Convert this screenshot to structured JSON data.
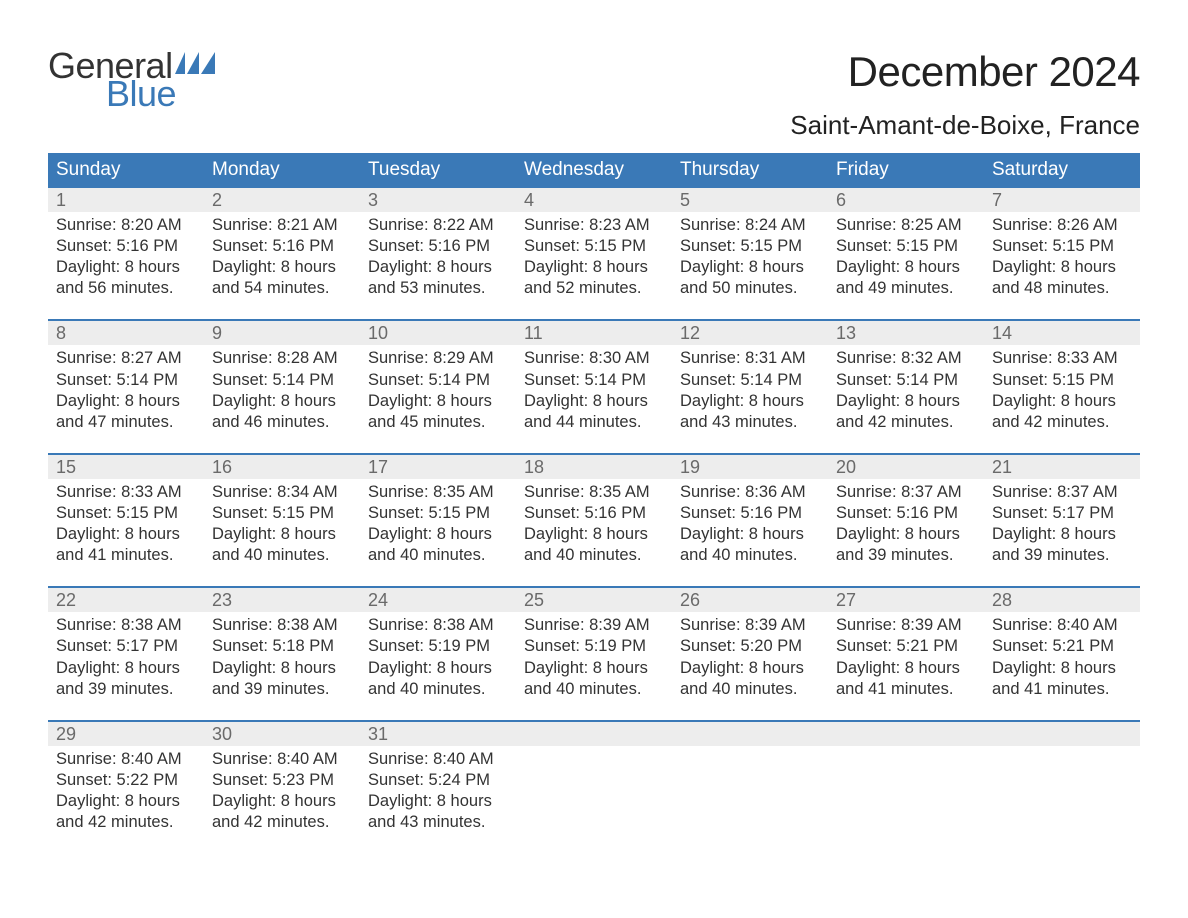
{
  "brand": {
    "word1": "General",
    "word2": "Blue",
    "accent_color": "#3a79b7"
  },
  "header": {
    "month_title": "December 2024",
    "location": "Saint-Amant-de-Boixe, France",
    "title_fontsize": 42,
    "location_fontsize": 26,
    "text_color": "#222222"
  },
  "calendar": {
    "type": "table",
    "header_bg": "#3a79b7",
    "header_text_color": "#ffffff",
    "daynum_bg": "#ededed",
    "daynum_color": "#6a6a6a",
    "week_divider_color": "#3a79b7",
    "body_text_color": "#333333",
    "body_fontsize": 16.5,
    "columns": [
      "Sunday",
      "Monday",
      "Tuesday",
      "Wednesday",
      "Thursday",
      "Friday",
      "Saturday"
    ],
    "days": [
      {
        "n": 1,
        "sunrise": "8:20 AM",
        "sunset": "5:16 PM",
        "dl": "8 hours and 56 minutes."
      },
      {
        "n": 2,
        "sunrise": "8:21 AM",
        "sunset": "5:16 PM",
        "dl": "8 hours and 54 minutes."
      },
      {
        "n": 3,
        "sunrise": "8:22 AM",
        "sunset": "5:16 PM",
        "dl": "8 hours and 53 minutes."
      },
      {
        "n": 4,
        "sunrise": "8:23 AM",
        "sunset": "5:15 PM",
        "dl": "8 hours and 52 minutes."
      },
      {
        "n": 5,
        "sunrise": "8:24 AM",
        "sunset": "5:15 PM",
        "dl": "8 hours and 50 minutes."
      },
      {
        "n": 6,
        "sunrise": "8:25 AM",
        "sunset": "5:15 PM",
        "dl": "8 hours and 49 minutes."
      },
      {
        "n": 7,
        "sunrise": "8:26 AM",
        "sunset": "5:15 PM",
        "dl": "8 hours and 48 minutes."
      },
      {
        "n": 8,
        "sunrise": "8:27 AM",
        "sunset": "5:14 PM",
        "dl": "8 hours and 47 minutes."
      },
      {
        "n": 9,
        "sunrise": "8:28 AM",
        "sunset": "5:14 PM",
        "dl": "8 hours and 46 minutes."
      },
      {
        "n": 10,
        "sunrise": "8:29 AM",
        "sunset": "5:14 PM",
        "dl": "8 hours and 45 minutes."
      },
      {
        "n": 11,
        "sunrise": "8:30 AM",
        "sunset": "5:14 PM",
        "dl": "8 hours and 44 minutes."
      },
      {
        "n": 12,
        "sunrise": "8:31 AM",
        "sunset": "5:14 PM",
        "dl": "8 hours and 43 minutes."
      },
      {
        "n": 13,
        "sunrise": "8:32 AM",
        "sunset": "5:14 PM",
        "dl": "8 hours and 42 minutes."
      },
      {
        "n": 14,
        "sunrise": "8:33 AM",
        "sunset": "5:15 PM",
        "dl": "8 hours and 42 minutes."
      },
      {
        "n": 15,
        "sunrise": "8:33 AM",
        "sunset": "5:15 PM",
        "dl": "8 hours and 41 minutes."
      },
      {
        "n": 16,
        "sunrise": "8:34 AM",
        "sunset": "5:15 PM",
        "dl": "8 hours and 40 minutes."
      },
      {
        "n": 17,
        "sunrise": "8:35 AM",
        "sunset": "5:15 PM",
        "dl": "8 hours and 40 minutes."
      },
      {
        "n": 18,
        "sunrise": "8:35 AM",
        "sunset": "5:16 PM",
        "dl": "8 hours and 40 minutes."
      },
      {
        "n": 19,
        "sunrise": "8:36 AM",
        "sunset": "5:16 PM",
        "dl": "8 hours and 40 minutes."
      },
      {
        "n": 20,
        "sunrise": "8:37 AM",
        "sunset": "5:16 PM",
        "dl": "8 hours and 39 minutes."
      },
      {
        "n": 21,
        "sunrise": "8:37 AM",
        "sunset": "5:17 PM",
        "dl": "8 hours and 39 minutes."
      },
      {
        "n": 22,
        "sunrise": "8:38 AM",
        "sunset": "5:17 PM",
        "dl": "8 hours and 39 minutes."
      },
      {
        "n": 23,
        "sunrise": "8:38 AM",
        "sunset": "5:18 PM",
        "dl": "8 hours and 39 minutes."
      },
      {
        "n": 24,
        "sunrise": "8:38 AM",
        "sunset": "5:19 PM",
        "dl": "8 hours and 40 minutes."
      },
      {
        "n": 25,
        "sunrise": "8:39 AM",
        "sunset": "5:19 PM",
        "dl": "8 hours and 40 minutes."
      },
      {
        "n": 26,
        "sunrise": "8:39 AM",
        "sunset": "5:20 PM",
        "dl": "8 hours and 40 minutes."
      },
      {
        "n": 27,
        "sunrise": "8:39 AM",
        "sunset": "5:21 PM",
        "dl": "8 hours and 41 minutes."
      },
      {
        "n": 28,
        "sunrise": "8:40 AM",
        "sunset": "5:21 PM",
        "dl": "8 hours and 41 minutes."
      },
      {
        "n": 29,
        "sunrise": "8:40 AM",
        "sunset": "5:22 PM",
        "dl": "8 hours and 42 minutes."
      },
      {
        "n": 30,
        "sunrise": "8:40 AM",
        "sunset": "5:23 PM",
        "dl": "8 hours and 42 minutes."
      },
      {
        "n": 31,
        "sunrise": "8:40 AM",
        "sunset": "5:24 PM",
        "dl": "8 hours and 43 minutes."
      }
    ],
    "labels": {
      "sunrise_prefix": "Sunrise: ",
      "sunset_prefix": "Sunset: ",
      "daylight_prefix": "Daylight: "
    }
  }
}
